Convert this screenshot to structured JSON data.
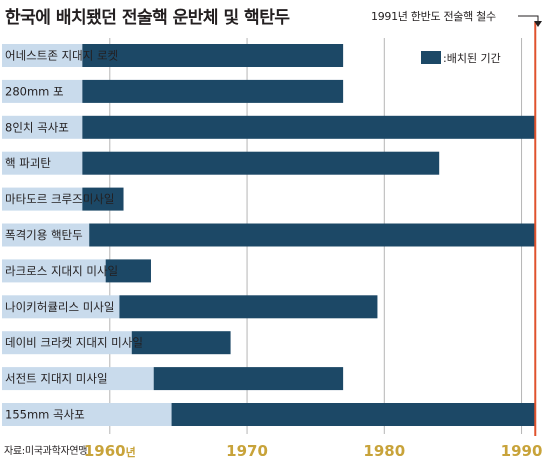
{
  "title": "한국에 배치됐던 전술핵 운반체 및 핵탄두",
  "annotation": "1991년 한반도 전술핵 철수",
  "source": "자료:미국과학자연맹",
  "colors": {
    "bar": "#1c4866",
    "label_band": "#c9dbec",
    "withdrawal_line": "#e0522d",
    "gridline": "#b5b5b5",
    "tick": "#c8a33a"
  },
  "chart_data": {
    "type": "bar",
    "orientation": "horizontal",
    "xlim": [
      1952,
      1992
    ],
    "x_ticks": [
      {
        "value": 1960,
        "label": "1960",
        "suffix": "년"
      },
      {
        "value": 1970,
        "label": "1970",
        "suffix": ""
      },
      {
        "value": 1980,
        "label": "1980",
        "suffix": ""
      },
      {
        "value": 1990,
        "label": "1990",
        "suffix": ""
      }
    ],
    "withdrawal_year": 1991,
    "legend": {
      "label": ":배치된 기간",
      "position": "top-right"
    },
    "grid": true,
    "categories": [
      "어네스트존 지대지 로켓",
      "280mm 포",
      "8인치 곡사포",
      "핵 파괴탄",
      "마타도르 크루즈미사일",
      "폭격기용 핵탄두",
      "라크로스 지대지 미사일",
      "나이키허큘리스 미사일",
      "데이비 크라켓 지대지 미사일",
      "서전트 지대지 미사일",
      "155mm 곡사포"
    ],
    "series": [
      {
        "name": "배치된 기간",
        "ranges": [
          [
            1958,
            1977
          ],
          [
            1958,
            1977
          ],
          [
            1958,
            1991
          ],
          [
            1958,
            1984
          ],
          [
            1958,
            1961
          ],
          [
            1958.5,
            1991
          ],
          [
            1959.7,
            1963
          ],
          [
            1960.7,
            1979.5
          ],
          [
            1961.6,
            1968.8
          ],
          [
            1963.2,
            1977
          ],
          [
            1964.5,
            1991
          ]
        ]
      }
    ]
  }
}
